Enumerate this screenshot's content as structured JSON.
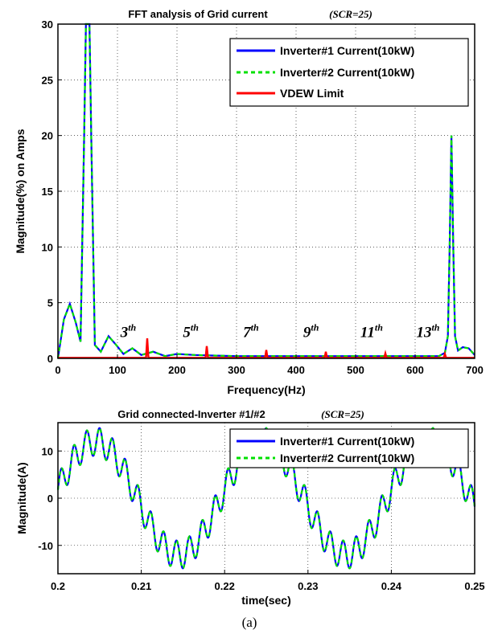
{
  "chart_data": [
    {
      "type": "line",
      "title": "FFT analysis of Grid current",
      "title_note": "(SCR=25)",
      "xlabel": "Frequency(Hz)",
      "ylabel": "Magnitude(%)  on Amps",
      "xlim": [
        0,
        700
      ],
      "ylim": [
        0,
        30
      ],
      "xticks": [
        0,
        100,
        200,
        300,
        400,
        500,
        600,
        700
      ],
      "yticks": [
        0,
        5,
        10,
        15,
        20,
        25,
        30
      ],
      "grid": true,
      "legend_position": "top-right",
      "series": [
        {
          "name": "Inverter#1 Current(10kW)",
          "color": "#0000ff",
          "style": "solid",
          "x": [
            0,
            10,
            20,
            30,
            38,
            44,
            47,
            50,
            53,
            56,
            62,
            72,
            85,
            98,
            110,
            125,
            140,
            160,
            180,
            200,
            230,
            260,
            300,
            350,
            400,
            450,
            500,
            550,
            600,
            640,
            650,
            655,
            658,
            661,
            664,
            667,
            672,
            680,
            690,
            700
          ],
          "y": [
            0,
            3.5,
            4.9,
            3.2,
            1.5,
            20,
            30,
            30,
            30,
            20,
            1.2,
            0.6,
            2.0,
            1.2,
            0.4,
            0.9,
            0.3,
            0.6,
            0.2,
            0.4,
            0.3,
            0.25,
            0.2,
            0.2,
            0.2,
            0.2,
            0.2,
            0.2,
            0.2,
            0.2,
            0.5,
            2,
            10,
            20,
            10,
            2,
            0.7,
            1.0,
            0.9,
            0.3
          ]
        },
        {
          "name": "Inverter#2 Current(10kW)",
          "color": "#00e000",
          "style": "dashed",
          "x": [
            0,
            10,
            20,
            30,
            38,
            44,
            47,
            50,
            53,
            56,
            62,
            72,
            85,
            98,
            110,
            125,
            140,
            160,
            180,
            200,
            230,
            260,
            300,
            350,
            400,
            450,
            500,
            550,
            600,
            640,
            650,
            655,
            658,
            661,
            664,
            667,
            672,
            680,
            690,
            700
          ],
          "y": [
            0,
            3.5,
            4.9,
            3.2,
            1.5,
            20,
            30,
            30,
            30,
            20,
            1.2,
            0.6,
            2.0,
            1.2,
            0.4,
            0.9,
            0.3,
            0.6,
            0.2,
            0.4,
            0.3,
            0.25,
            0.2,
            0.2,
            0.2,
            0.2,
            0.2,
            0.2,
            0.2,
            0.2,
            0.5,
            2,
            10,
            20,
            10,
            2,
            0.7,
            1.0,
            0.9,
            0.3
          ]
        },
        {
          "name": "VDEW Limit",
          "color": "#ff0000",
          "style": "solid",
          "baseline": 0.05,
          "spikes": [
            {
              "x": 150,
              "y": 1.8
            },
            {
              "x": 250,
              "y": 1.1
            },
            {
              "x": 350,
              "y": 0.75
            },
            {
              "x": 450,
              "y": 0.6
            },
            {
              "x": 550,
              "y": 0.45
            },
            {
              "x": 650,
              "y": 0.4
            }
          ]
        }
      ],
      "annotations": [
        {
          "base": "3",
          "sup": "th",
          "x": 105,
          "y": 1.9
        },
        {
          "base": "5",
          "sup": "th",
          "x": 210,
          "y": 1.9
        },
        {
          "base": "7",
          "sup": "th",
          "x": 311,
          "y": 1.9
        },
        {
          "base": "9",
          "sup": "th",
          "x": 412,
          "y": 1.9
        },
        {
          "base": "11",
          "sup": "th",
          "x": 508,
          "y": 1.9
        },
        {
          "base": "13",
          "sup": "th",
          "x": 602,
          "y": 1.9
        }
      ]
    },
    {
      "type": "line",
      "title": "Grid connected-Inverter #1/#2",
      "title_note": "(SCR=25)",
      "xlabel": "time(sec)",
      "ylabel": "Magnitude(A)",
      "xlim": [
        0.2,
        0.25
      ],
      "ylim": [
        -16,
        16
      ],
      "xticks": [
        0.2,
        0.21,
        0.22,
        0.23,
        0.24,
        0.25
      ],
      "yticks": [
        -10,
        0,
        10
      ],
      "grid": true,
      "legend_position": "top-right",
      "series": [
        {
          "name": "Inverter#1 Current(10kW)",
          "color": "#0000ff",
          "style": "solid",
          "fundamental_hz": 50,
          "amplitude_a": 12,
          "ripple_amplitude_a": 3,
          "ripple_hz": 650
        },
        {
          "name": "Inverter#2 Current(10kW)",
          "color": "#00e000",
          "style": "dashed",
          "fundamental_hz": 50,
          "amplitude_a": 12,
          "ripple_amplitude_a": 3,
          "ripple_hz": 650
        }
      ]
    }
  ],
  "caption": "(a)"
}
